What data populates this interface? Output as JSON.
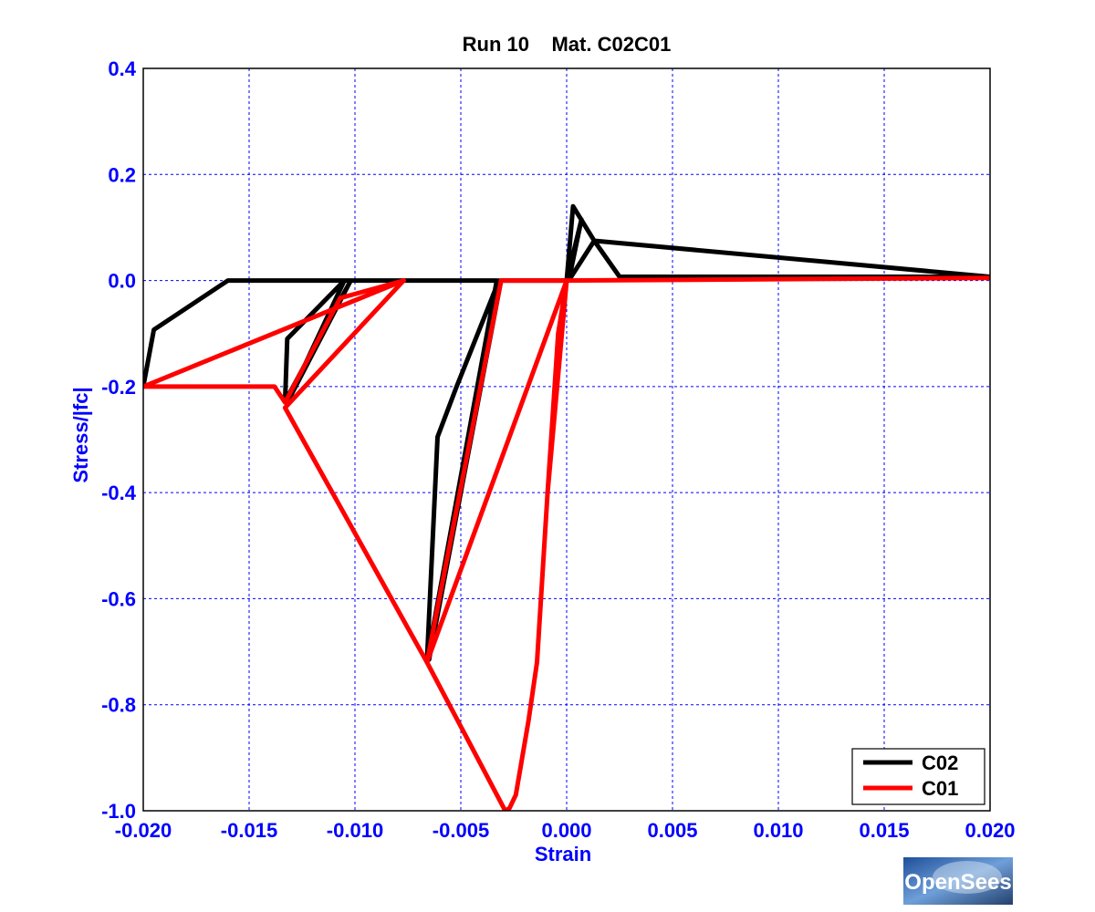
{
  "chart_data": {
    "type": "line",
    "title": "Run 10    Mat. C02C01",
    "xlabel": "Strain",
    "ylabel": "Stress/|fc|",
    "xlim": [
      -0.02,
      0.02
    ],
    "ylim": [
      -1.0,
      0.4
    ],
    "x_ticks": [
      "-0.020",
      "-0.015",
      "-0.010",
      "-0.005",
      "0.000",
      "0.005",
      "0.010",
      "0.015",
      "0.020"
    ],
    "y_ticks": [
      "0.4",
      "0.2",
      "0.0",
      "-0.2",
      "-0.4",
      "-0.6",
      "-0.8",
      "-1.0"
    ],
    "grid": true,
    "legend_position": "bottom-right",
    "series": [
      {
        "name": "C02",
        "color": "#000000",
        "points": [
          [
            -0.02,
            -0.2
          ],
          [
            -0.0195,
            -0.093
          ],
          [
            -0.016,
            0.0
          ],
          [
            -0.0076,
            0.0
          ],
          [
            -0.0102,
            0.0
          ],
          [
            -0.0133,
            -0.228
          ],
          [
            -0.0132,
            -0.11
          ],
          [
            -0.0105,
            0.0
          ],
          [
            -0.0132,
            -0.23
          ],
          [
            -0.0102,
            0.0
          ],
          [
            -0.0033,
            0.0
          ],
          [
            -0.0066,
            -0.718
          ],
          [
            -0.0061,
            -0.295
          ],
          [
            -0.0052,
            -0.2
          ],
          [
            -0.0032,
            0.0
          ],
          [
            -0.0065,
            -0.715
          ],
          [
            -0.0031,
            0.0
          ],
          [
            0.0,
            0.0
          ],
          [
            0.0003,
            0.14
          ],
          [
            0.0013,
            0.075
          ],
          [
            0.0025,
            0.007
          ],
          [
            0.02,
            0.007
          ],
          [
            0.0013,
            0.075
          ],
          [
            0.0001,
            0.0
          ],
          [
            0.0007,
            0.115
          ],
          [
            0.0,
            0.0
          ]
        ]
      },
      {
        "name": "C01",
        "color": "#ff0000",
        "points": [
          [
            -0.02,
            -0.2
          ],
          [
            -0.0138,
            -0.2
          ],
          [
            -0.0133,
            -0.23
          ],
          [
            -0.0107,
            -0.033
          ],
          [
            -0.0077,
            0.0
          ],
          [
            -0.02,
            -0.2
          ],
          [
            -0.0077,
            0.0
          ],
          [
            -0.0133,
            -0.24
          ],
          [
            -0.0066,
            -0.72
          ],
          [
            -0.0029,
            -1.0
          ],
          [
            -0.0027,
            -0.995
          ],
          [
            -0.0024,
            -0.97
          ],
          [
            -0.0018,
            -0.83
          ],
          [
            -0.0014,
            -0.72
          ],
          [
            -0.0009,
            -0.4
          ],
          [
            -0.0004,
            -0.1
          ],
          [
            0.0,
            0.0
          ],
          [
            -0.0066,
            -0.72
          ],
          [
            -0.0031,
            0.0
          ],
          [
            0.0,
            0.0
          ],
          [
            -0.0009,
            -0.4
          ],
          [
            -0.0004,
            -0.1
          ],
          [
            0.0,
            0.0
          ],
          [
            0.02,
            0.005
          ]
        ]
      }
    ]
  },
  "logo": {
    "text": "OpenSees"
  },
  "colors": {
    "axis_blue": "#0000ff",
    "grid": "#0000ff",
    "c02": "#000000",
    "c01": "#ff0000"
  }
}
